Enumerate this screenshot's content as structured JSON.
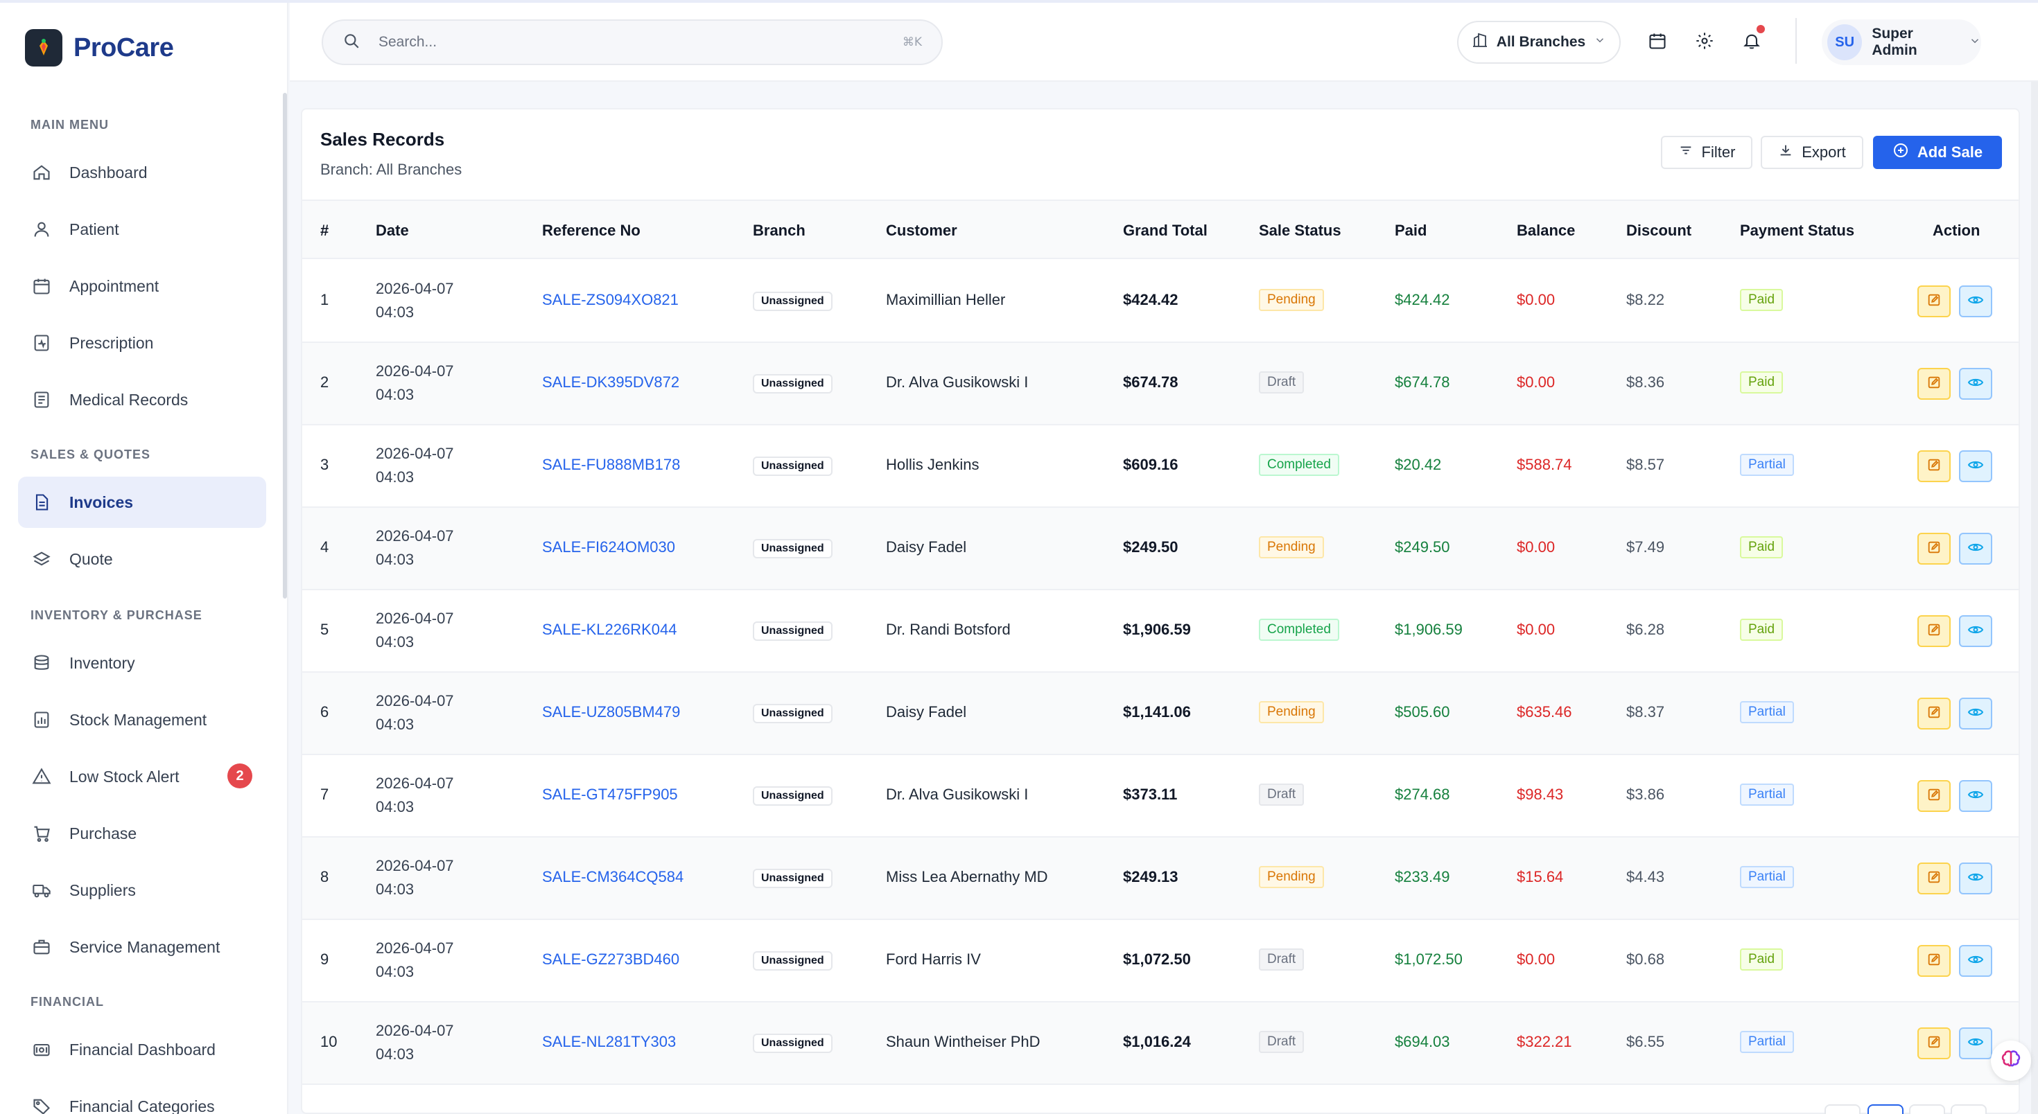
{
  "brand": {
    "name": "ProCare"
  },
  "sidebar": {
    "sections": [
      {
        "title": "MAIN MENU"
      },
      {
        "title": "SALES & QUOTES"
      },
      {
        "title": "INVENTORY & PURCHASE"
      },
      {
        "title": "FINANCIAL"
      }
    ],
    "items": [
      {
        "label": "Dashboard",
        "icon": "home-icon"
      },
      {
        "label": "Patient",
        "icon": "user-icon"
      },
      {
        "label": "Appointment",
        "icon": "calendar-icon"
      },
      {
        "label": "Prescription",
        "icon": "prescription-icon"
      },
      {
        "label": "Medical Records",
        "icon": "records-icon"
      },
      {
        "label": "Invoices",
        "icon": "invoice-icon",
        "active": true
      },
      {
        "label": "Quote",
        "icon": "layers-icon"
      },
      {
        "label": "Inventory",
        "icon": "database-icon"
      },
      {
        "label": "Stock Management",
        "icon": "chart-icon"
      },
      {
        "label": "Low Stock Alert",
        "icon": "warning-icon",
        "badge": "2"
      },
      {
        "label": "Purchase",
        "icon": "cart-icon"
      },
      {
        "label": "Suppliers",
        "icon": "truck-icon"
      },
      {
        "label": "Service Management",
        "icon": "briefcase-icon"
      },
      {
        "label": "Financial Dashboard",
        "icon": "wallet-icon"
      },
      {
        "label": "Financial Categories",
        "icon": "tag-icon"
      }
    ]
  },
  "topbar": {
    "search_placeholder": "Search...",
    "search_shortcut": "⌘K",
    "branch_label": "All Branches",
    "user_initials": "SU",
    "user_name": "Super Admin"
  },
  "page": {
    "title": "Sales Records",
    "subtitle": "Branch: All Branches",
    "filter_label": "Filter",
    "export_label": "Export",
    "add_label": "Add Sale"
  },
  "table": {
    "columns": [
      "#",
      "Date",
      "Reference No",
      "Branch",
      "Customer",
      "Grand Total",
      "Sale Status",
      "Paid",
      "Balance",
      "Discount",
      "Payment Status",
      "Action"
    ],
    "rows": [
      {
        "num": "1",
        "date": "2026-04-07",
        "time": "04:03",
        "ref": "SALE-ZS094XO821",
        "branch": "Unassigned",
        "customer": "Maximillian Heller",
        "total": "$424.42",
        "status": "Pending",
        "paid": "$424.42",
        "balance": "$0.00",
        "discount": "$8.22",
        "payment": "Paid"
      },
      {
        "num": "2",
        "date": "2026-04-07",
        "time": "04:03",
        "ref": "SALE-DK395DV872",
        "branch": "Unassigned",
        "customer": "Dr. Alva Gusikowski I",
        "total": "$674.78",
        "status": "Draft",
        "paid": "$674.78",
        "balance": "$0.00",
        "discount": "$8.36",
        "payment": "Paid"
      },
      {
        "num": "3",
        "date": "2026-04-07",
        "time": "04:03",
        "ref": "SALE-FU888MB178",
        "branch": "Unassigned",
        "customer": "Hollis Jenkins",
        "total": "$609.16",
        "status": "Completed",
        "paid": "$20.42",
        "balance": "$588.74",
        "discount": "$8.57",
        "payment": "Partial"
      },
      {
        "num": "4",
        "date": "2026-04-07",
        "time": "04:03",
        "ref": "SALE-FI624OM030",
        "branch": "Unassigned",
        "customer": "Daisy Fadel",
        "total": "$249.50",
        "status": "Pending",
        "paid": "$249.50",
        "balance": "$0.00",
        "discount": "$7.49",
        "payment": "Paid"
      },
      {
        "num": "5",
        "date": "2026-04-07",
        "time": "04:03",
        "ref": "SALE-KL226RK044",
        "branch": "Unassigned",
        "customer": "Dr. Randi Botsford",
        "total": "$1,906.59",
        "status": "Completed",
        "paid": "$1,906.59",
        "balance": "$0.00",
        "discount": "$6.28",
        "payment": "Paid"
      },
      {
        "num": "6",
        "date": "2026-04-07",
        "time": "04:03",
        "ref": "SALE-UZ805BM479",
        "branch": "Unassigned",
        "customer": "Daisy Fadel",
        "total": "$1,141.06",
        "status": "Pending",
        "paid": "$505.60",
        "balance": "$635.46",
        "discount": "$8.37",
        "payment": "Partial"
      },
      {
        "num": "7",
        "date": "2026-04-07",
        "time": "04:03",
        "ref": "SALE-GT475FP905",
        "branch": "Unassigned",
        "customer": "Dr. Alva Gusikowski I",
        "total": "$373.11",
        "status": "Draft",
        "paid": "$274.68",
        "balance": "$98.43",
        "discount": "$3.86",
        "payment": "Partial"
      },
      {
        "num": "8",
        "date": "2026-04-07",
        "time": "04:03",
        "ref": "SALE-CM364CQ584",
        "branch": "Unassigned",
        "customer": "Miss Lea Abernathy MD",
        "total": "$249.13",
        "status": "Pending",
        "paid": "$233.49",
        "balance": "$15.64",
        "discount": "$4.43",
        "payment": "Partial"
      },
      {
        "num": "9",
        "date": "2026-04-07",
        "time": "04:03",
        "ref": "SALE-GZ273BD460",
        "branch": "Unassigned",
        "customer": "Ford Harris IV",
        "total": "$1,072.50",
        "status": "Draft",
        "paid": "$1,072.50",
        "balance": "$0.00",
        "discount": "$0.68",
        "payment": "Paid"
      },
      {
        "num": "10",
        "date": "2026-04-07",
        "time": "04:03",
        "ref": "SALE-NL281TY303",
        "branch": "Unassigned",
        "customer": "Shaun Wintheiser PhD",
        "total": "$1,016.24",
        "status": "Draft",
        "paid": "$694.03",
        "balance": "$322.21",
        "discount": "$6.55",
        "payment": "Partial"
      }
    ]
  },
  "colors": {
    "brand": "#1e3a8a",
    "primary": "#2563eb",
    "danger": "#e5484d",
    "paid_green": "#15803d",
    "balance_red": "#dc2626"
  }
}
